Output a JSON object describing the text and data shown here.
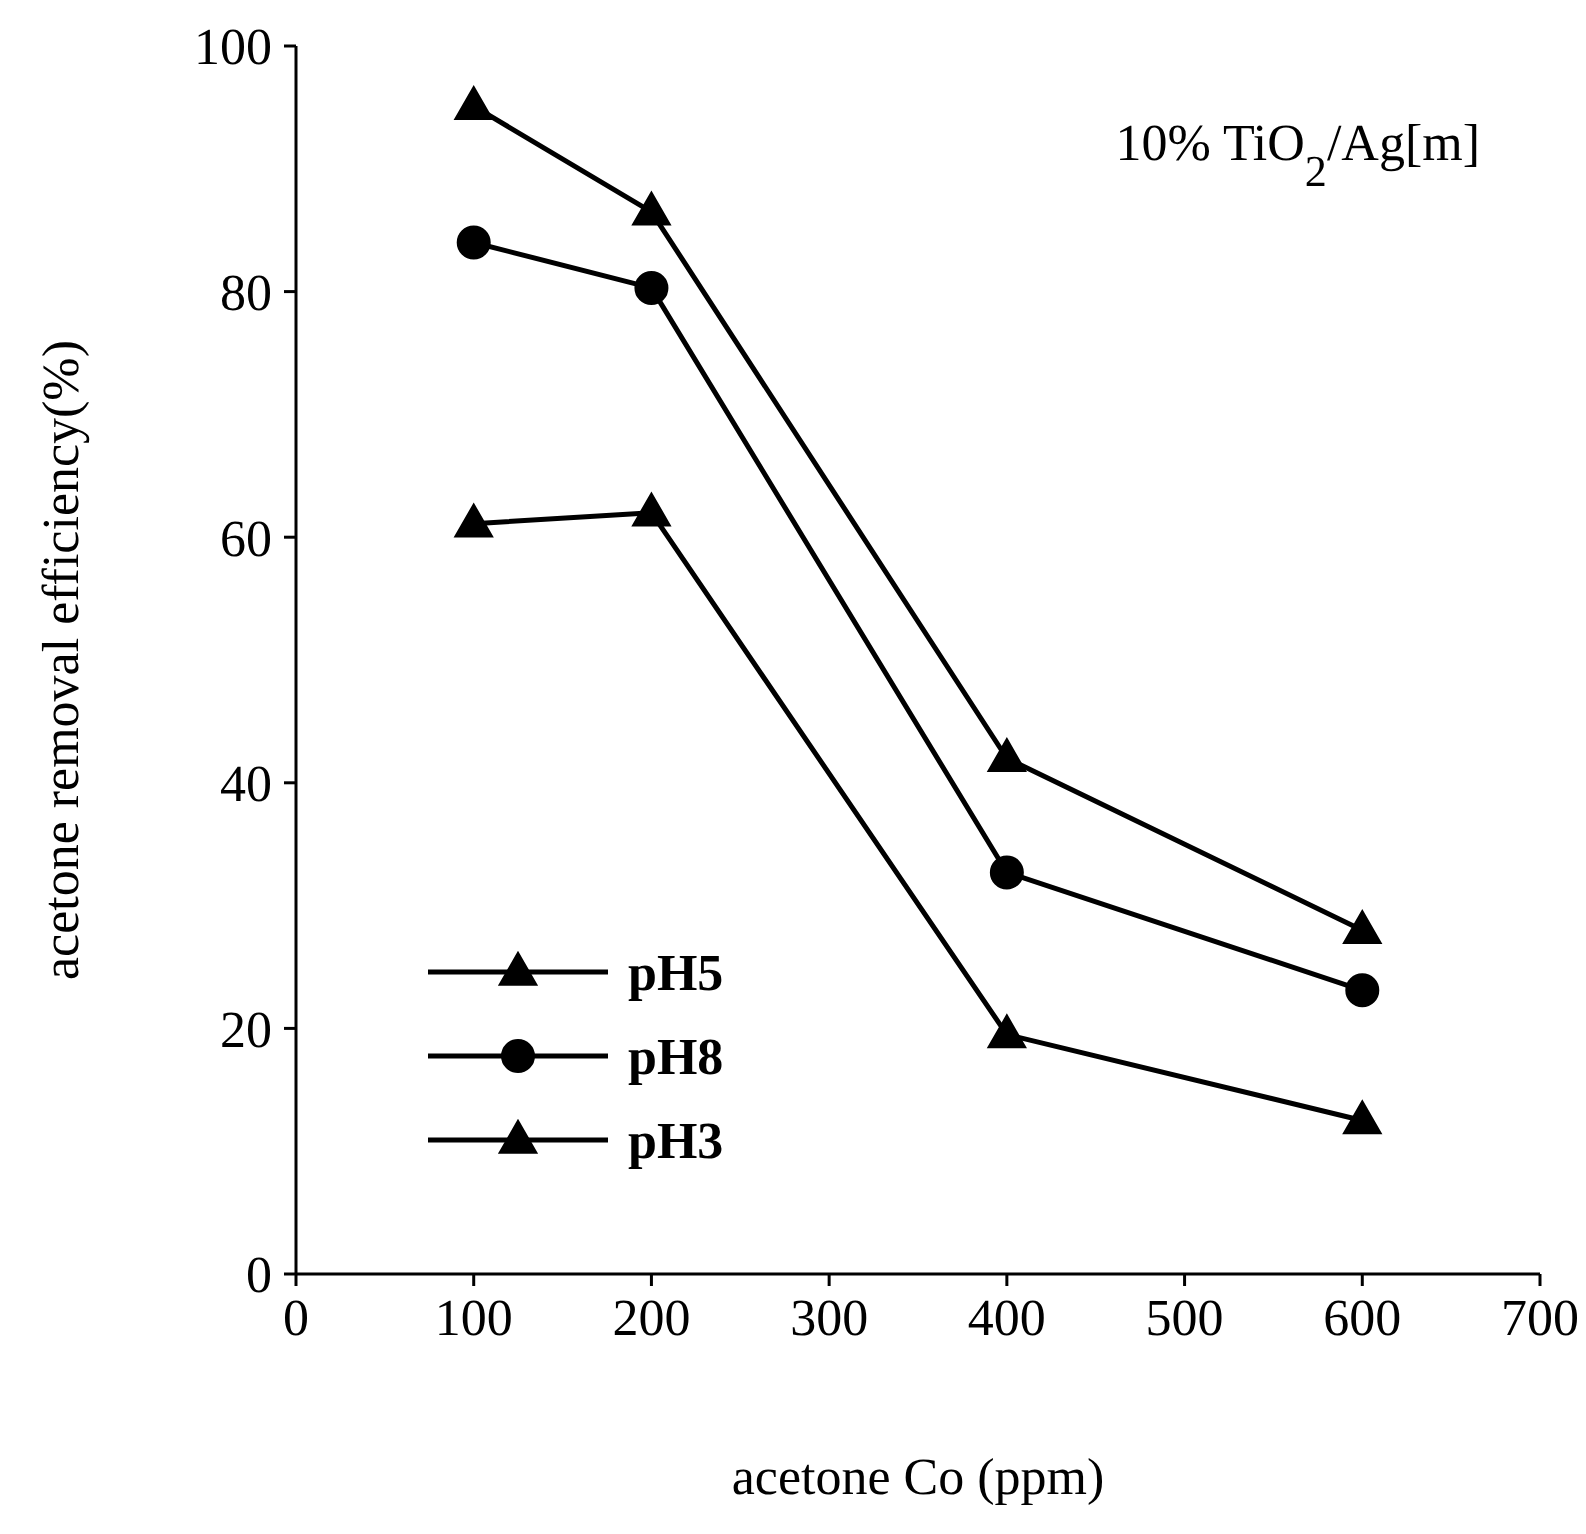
{
  "chart_data": {
    "type": "line",
    "xlabel": "acetone Co (ppm)",
    "ylabel": "acetone removal efficiency(%)",
    "annotations": [
      "10% TiO$_{2}$/Ag[m]"
    ],
    "x": [
      100,
      200,
      400,
      600
    ],
    "series": [
      {
        "name": "pH5",
        "color": "#000000",
        "marker": "triangle",
        "values": [
          95.1,
          86.5,
          42.0,
          28.0
        ]
      },
      {
        "name": "pH8",
        "color": "#000000",
        "marker": "circle",
        "values": [
          84.0,
          80.3,
          32.7,
          23.1
        ]
      },
      {
        "name": "pH3",
        "color": "#000000",
        "marker": "triangle",
        "values": [
          61.1,
          62.0,
          19.5,
          12.5
        ]
      }
    ],
    "xlim": [
      0,
      700
    ],
    "xticks": [
      0,
      100,
      200,
      300,
      400,
      500,
      600,
      700
    ],
    "ylim": [
      0,
      100
    ],
    "yticks": [
      0,
      20,
      40,
      60,
      80,
      100
    ],
    "grid": false,
    "legend": "bottom left",
    "line_style": "solid"
  }
}
